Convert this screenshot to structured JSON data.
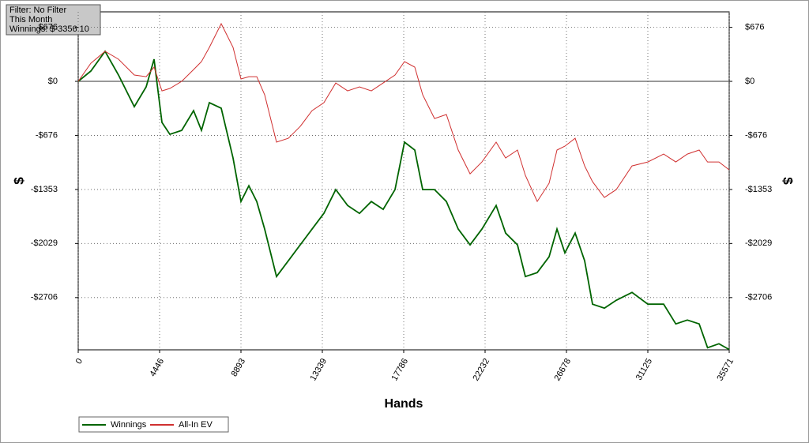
{
  "chart_data": {
    "type": "line",
    "annotations": [
      "Filter: No Filter",
      "This Month",
      "Winnings: $-3356.10"
    ],
    "x_label": "Hands",
    "y_label": "$",
    "y2_label": "$",
    "x": [
      0,
      691,
      1468,
      2202,
      3065,
      3713,
      4144,
      4576,
      5008,
      5655,
      6303,
      6735,
      7166,
      7814,
      8461,
      8893,
      9325,
      9756,
      10188,
      10835,
      11483,
      12130,
      12778,
      13425,
      14073,
      14720,
      15368,
      16015,
      16663,
      17310,
      17829,
      18390,
      18822,
      19470,
      20117,
      20765,
      21412,
      22060,
      22837,
      23355,
      24003,
      24434,
      25082,
      25729,
      26161,
      26593,
      27154,
      27672,
      28104,
      28751,
      29399,
      30262,
      31126,
      31989,
      32653,
      33284,
      33932,
      34388,
      35011,
      35571
    ],
    "series": [
      {
        "name": "Winnings",
        "color": "#006400",
        "values": [
          0,
          129,
          376,
          79,
          -317,
          -69,
          277,
          -514,
          -663,
          -613,
          -366,
          -613,
          -267,
          -336,
          -960,
          -1504,
          -1306,
          -1504,
          -1849,
          -2443,
          -2245,
          -2047,
          -1849,
          -1651,
          -1355,
          -1553,
          -1652,
          -1504,
          -1602,
          -1355,
          -761,
          -860,
          -1355,
          -1355,
          -1504,
          -1849,
          -2047,
          -1849,
          -1553,
          -1899,
          -2047,
          -2443,
          -2393,
          -2196,
          -1849,
          -2146,
          -1899,
          -2245,
          -2789,
          -2838,
          -2740,
          -2641,
          -2789,
          -2789,
          -3036,
          -2987,
          -3036,
          -3333,
          -3284,
          -3356.1
        ]
      },
      {
        "name": "All-In EV",
        "color": "#d03030",
        "values": [
          0,
          227,
          376,
          277,
          79,
          59,
          178,
          -119,
          -89,
          0,
          148,
          247,
          425,
          722,
          425,
          30,
          59,
          59,
          -168,
          -761,
          -712,
          -564,
          -366,
          -267,
          -20,
          -119,
          -69,
          -119,
          -20,
          79,
          247,
          178,
          -168,
          -465,
          -415,
          -860,
          -1157,
          -1009,
          -761,
          -959,
          -860,
          -1177,
          -1503,
          -1276,
          -860,
          -811,
          -712,
          -1058,
          -1256,
          -1454,
          -1355,
          -1058,
          -1009,
          -910,
          -1009,
          -910,
          -860,
          -1009,
          -1009,
          -1108
        ]
      }
    ],
    "xlim": [
      0,
      35571
    ],
    "xticks": [
      0,
      4446,
      8893,
      13339,
      17786,
      22232,
      26678,
      31125,
      35571
    ],
    "ylim": [
      -3360,
      870
    ],
    "yticks": [
      {
        "value": 676,
        "label": "$676"
      },
      {
        "value": 0,
        "label": "$0"
      },
      {
        "value": -676,
        "label": "-$676"
      },
      {
        "value": -1353,
        "label": "-$1353"
      },
      {
        "value": -2029,
        "label": "-$2029"
      },
      {
        "value": -2706,
        "label": "-$2706"
      }
    ],
    "grid": true
  }
}
